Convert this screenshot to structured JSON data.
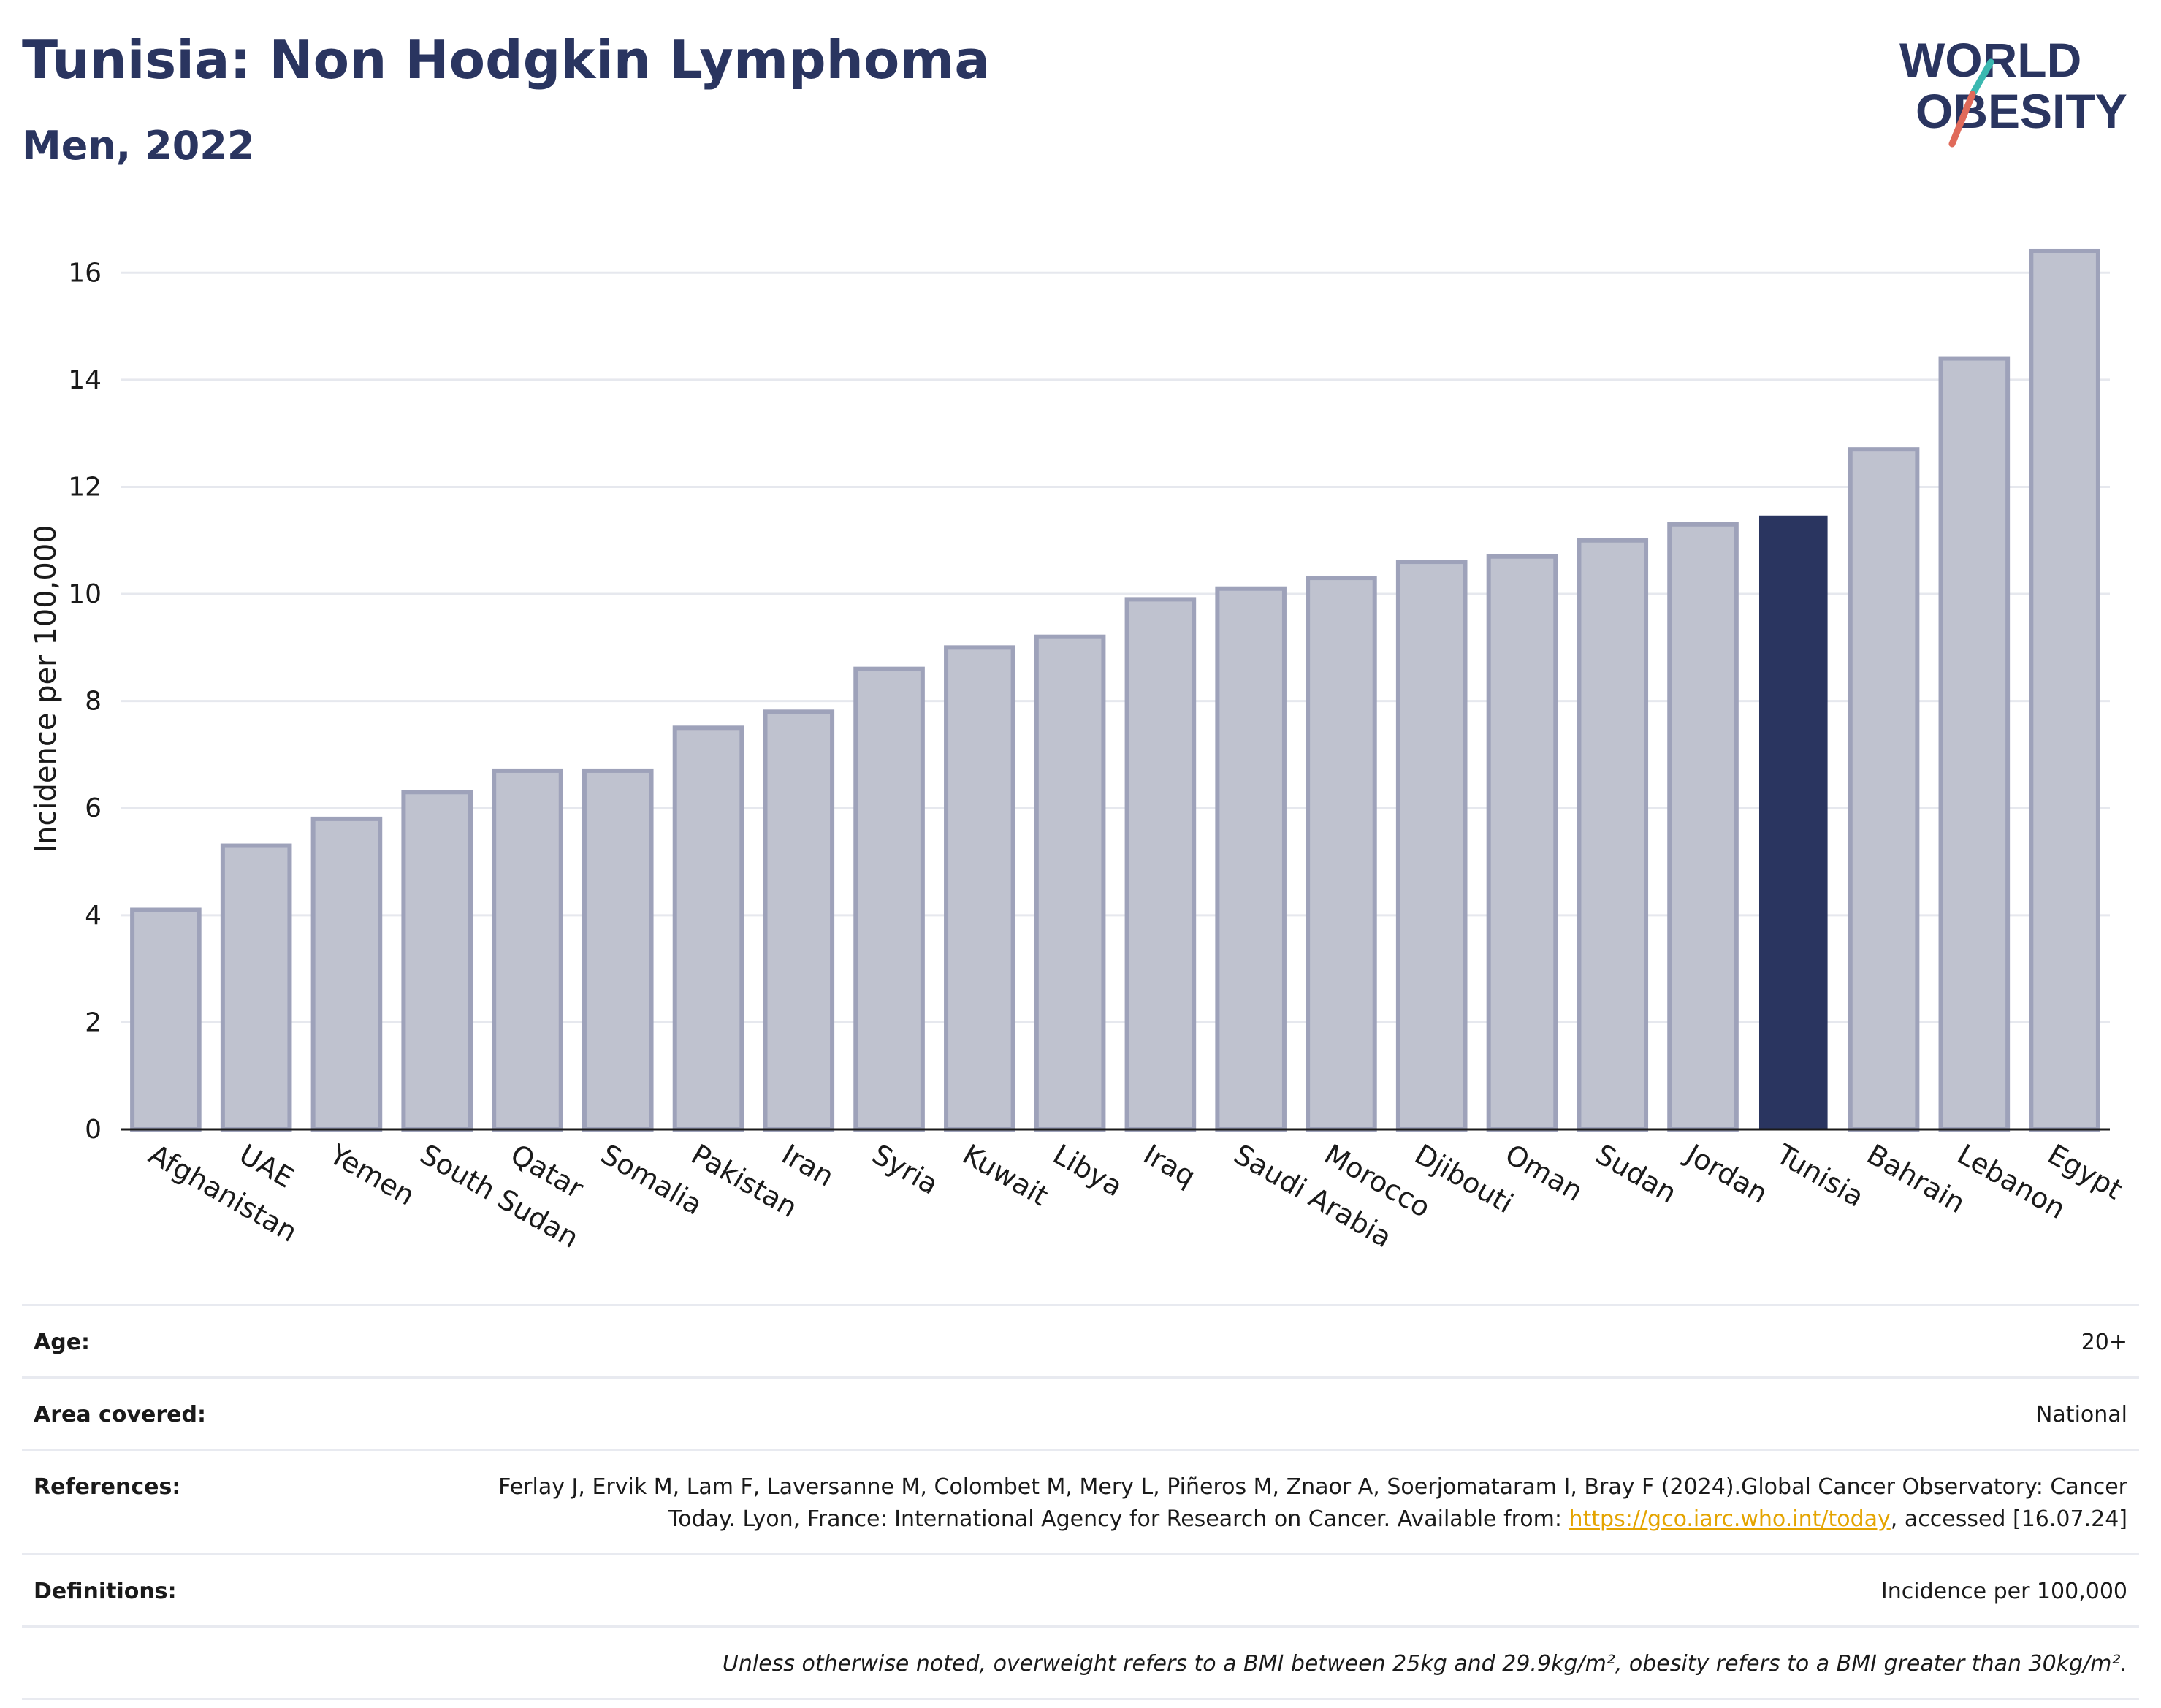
{
  "header": {
    "title": "Tunisia: Non Hodgkin Lymphoma",
    "subtitle": "Men, 2022"
  },
  "logo": {
    "line1": "WORLD",
    "line2": "OBESITY"
  },
  "colors": {
    "bar": "#bfc2cf",
    "bar_border": "#9ea2ba",
    "highlight": "#2a3560",
    "grid": "#e6e8ee",
    "logo_teal": "#3bb8b0",
    "logo_red": "#e06a5a"
  },
  "chart_data": {
    "type": "bar",
    "ylabel": "Incidence per 100,000",
    "ylim": [
      0,
      17
    ],
    "yticks": [
      0,
      2,
      4,
      6,
      8,
      10,
      12,
      14,
      16
    ],
    "grid": true,
    "highlight": "Tunisia",
    "categories": [
      "Afghanistan",
      "UAE",
      "Yemen",
      "South Sudan",
      "Qatar",
      "Somalia",
      "Pakistan",
      "Iran",
      "Syria",
      "Kuwait",
      "Libya",
      "Iraq",
      "Saudi Arabia",
      "Morocco",
      "Djibouti",
      "Oman",
      "Sudan",
      "Jordan",
      "Tunisia",
      "Bahrain",
      "Lebanon",
      "Egypt"
    ],
    "values": [
      4.1,
      5.3,
      5.8,
      6.3,
      6.7,
      6.7,
      7.5,
      7.8,
      8.6,
      9.0,
      9.2,
      9.9,
      10.1,
      10.3,
      10.6,
      10.7,
      11.0,
      11.3,
      11.45,
      12.7,
      14.4,
      16.4
    ]
  },
  "info": {
    "age_label": "Age:",
    "age_value": "20+",
    "area_label": "Area covered:",
    "area_value": "National",
    "references_label": "References:",
    "references_text": "Ferlay J, Ervik M, Lam F, Laversanne M, Colombet M, Mery L, Piñeros M, Znaor A, Soerjomataram I, Bray F (2024).Global Cancer Observatory: Cancer Today. Lyon, France: International Agency for Research on Cancer. Available from: ",
    "references_link": "https://gco.iarc.who.int/today",
    "references_tail": ", accessed [16.07.24]",
    "definitions_label": "Definitions:",
    "definitions_value": "Incidence per 100,000",
    "note": "Unless otherwise noted, overweight refers to a BMI between 25kg and 29.9kg/m², obesity refers to a BMI greater than 30kg/m²."
  }
}
